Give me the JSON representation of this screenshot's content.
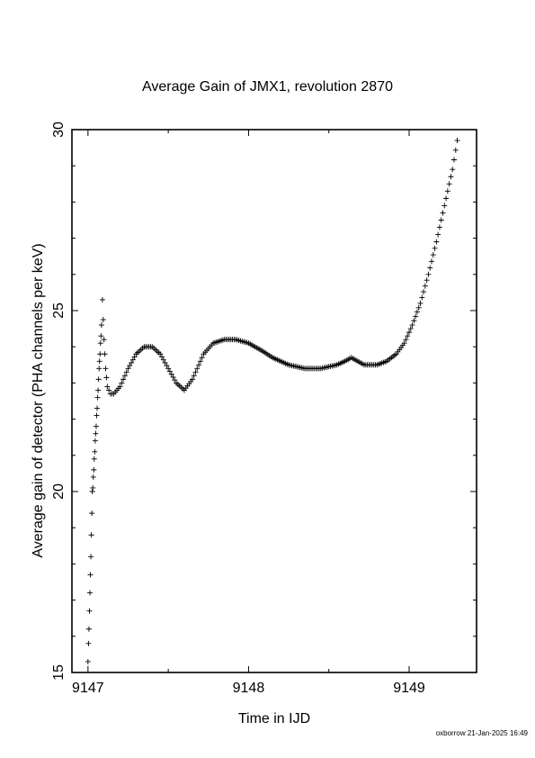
{
  "footer": "oxborrow 21-Jan-2025 16:49",
  "chart_data": {
    "type": "scatter",
    "marker": "+",
    "title": "Average Gain of JMX1, revolution 2870",
    "xlabel": "Time in IJD",
    "ylabel": "Average gain of detector (PHA channels per keV)",
    "xlim": [
      9146.9,
      9149.42
    ],
    "ylim": [
      15,
      30
    ],
    "xticks": [
      9147,
      9148,
      9149
    ],
    "yticks": [
      15,
      20,
      25,
      30
    ],
    "grid": false,
    "series": [
      {
        "x": [
          9147.0,
          9147.003,
          9147.006,
          9147.009,
          9147.012,
          9147.015,
          9147.018,
          9147.021,
          9147.024,
          9147.027,
          9147.03,
          9147.033,
          9147.036,
          9147.039,
          9147.042,
          9147.045,
          9147.048,
          9147.051,
          9147.054,
          9147.057,
          9147.06,
          9147.063,
          9147.066,
          9147.069,
          9147.072,
          9147.075,
          9147.078,
          9147.081,
          9147.084,
          9147.09,
          9147.1,
          9147.11,
          9147.12,
          9147.14,
          9147.16,
          9147.2,
          9147.25,
          9147.3,
          9147.35,
          9147.4,
          9147.45,
          9147.5,
          9147.55,
          9147.6,
          9147.65,
          9147.68,
          9147.72,
          9147.78,
          9147.85,
          9147.92,
          9148.0,
          9148.08,
          9148.15,
          9148.25,
          9148.35,
          9148.45,
          9148.55,
          9148.6,
          9148.64,
          9148.68,
          9148.72,
          9148.76,
          9148.8,
          9148.86,
          9148.92,
          9148.97,
          9149.02,
          9149.07,
          9149.12,
          9149.17,
          9149.22,
          9149.27,
          9149.3
        ],
        "y": [
          15.3,
          15.8,
          16.2,
          16.7,
          17.2,
          17.7,
          18.2,
          18.8,
          19.4,
          20.0,
          20.1,
          20.4,
          20.6,
          20.9,
          21.1,
          21.4,
          21.6,
          21.8,
          22.1,
          22.3,
          22.6,
          22.8,
          23.1,
          23.4,
          23.6,
          23.8,
          24.1,
          24.3,
          24.6,
          25.3,
          24.2,
          23.4,
          22.9,
          22.7,
          22.7,
          22.9,
          23.4,
          23.8,
          24.0,
          24.0,
          23.8,
          23.4,
          23.0,
          22.8,
          23.1,
          23.4,
          23.8,
          24.1,
          24.2,
          24.2,
          24.1,
          23.9,
          23.7,
          23.5,
          23.4,
          23.4,
          23.5,
          23.6,
          23.7,
          23.6,
          23.5,
          23.5,
          23.5,
          23.6,
          23.8,
          24.1,
          24.6,
          25.2,
          26.0,
          26.9,
          27.9,
          28.9,
          29.7
        ]
      }
    ]
  }
}
